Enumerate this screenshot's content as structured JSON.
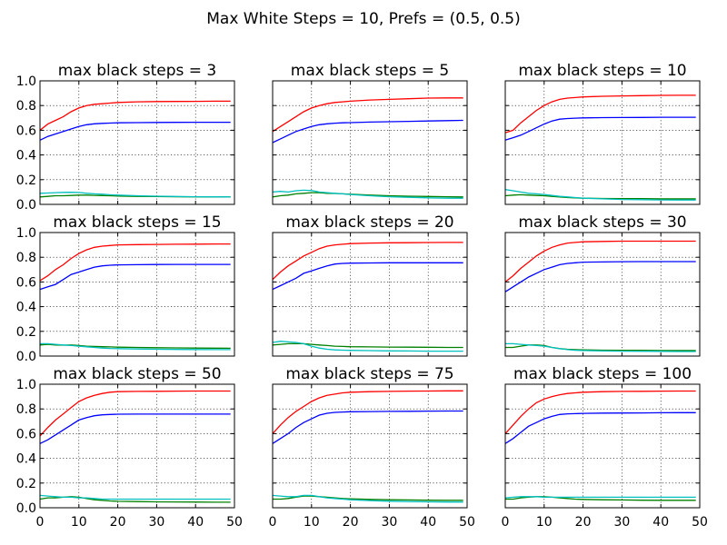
{
  "figure": {
    "suptitle": "Max White Steps = 10, Prefs = (0.5, 0.5)"
  },
  "chart_data": {
    "type": "line",
    "grid": true,
    "xlim": [
      0,
      50
    ],
    "ylim": [
      0.0,
      1.0
    ],
    "xticks": [
      "0",
      "10",
      "20",
      "30",
      "40",
      "50"
    ],
    "yticks": [
      "0.0",
      "0.2",
      "0.4",
      "0.6",
      "0.8",
      "1.0"
    ],
    "series_colors": [
      "#ff0000",
      "#0000ff",
      "#008000",
      "#00bfbf"
    ],
    "x": [
      0,
      2,
      4,
      6,
      8,
      10,
      12,
      14,
      16,
      18,
      20,
      25,
      30,
      35,
      40,
      45,
      49
    ],
    "panels": [
      {
        "title": "max black steps = 3",
        "series": [
          {
            "color": "#ff0000",
            "values": [
              0.6,
              0.65,
              0.68,
              0.71,
              0.75,
              0.78,
              0.8,
              0.81,
              0.815,
              0.82,
              0.825,
              0.83,
              0.832,
              0.833,
              0.834,
              0.835,
              0.835
            ]
          },
          {
            "color": "#0000ff",
            "values": [
              0.52,
              0.55,
              0.57,
              0.59,
              0.61,
              0.63,
              0.645,
              0.652,
              0.656,
              0.658,
              0.66,
              0.662,
              0.663,
              0.664,
              0.665,
              0.665,
              0.665
            ]
          },
          {
            "color": "#008000",
            "values": [
              0.06,
              0.065,
              0.07,
              0.07,
              0.072,
              0.075,
              0.075,
              0.073,
              0.071,
              0.07,
              0.068,
              0.065,
              0.063,
              0.062,
              0.061,
              0.06,
              0.06
            ]
          },
          {
            "color": "#00bfbf",
            "values": [
              0.09,
              0.092,
              0.095,
              0.097,
              0.098,
              0.096,
              0.09,
              0.085,
              0.082,
              0.078,
              0.075,
              0.07,
              0.066,
              0.064,
              0.062,
              0.061,
              0.06
            ]
          }
        ]
      },
      {
        "title": "max black steps = 5",
        "series": [
          {
            "color": "#ff0000",
            "values": [
              0.59,
              0.63,
              0.67,
              0.71,
              0.75,
              0.78,
              0.8,
              0.815,
              0.825,
              0.83,
              0.835,
              0.845,
              0.85,
              0.855,
              0.86,
              0.862,
              0.862
            ]
          },
          {
            "color": "#0000ff",
            "values": [
              0.5,
              0.53,
              0.56,
              0.59,
              0.61,
              0.63,
              0.645,
              0.652,
              0.657,
              0.66,
              0.662,
              0.666,
              0.669,
              0.672,
              0.675,
              0.678,
              0.68
            ]
          },
          {
            "color": "#008000",
            "values": [
              0.06,
              0.07,
              0.075,
              0.085,
              0.09,
              0.095,
              0.095,
              0.09,
              0.088,
              0.085,
              0.082,
              0.075,
              0.07,
              0.066,
              0.064,
              0.062,
              0.06
            ]
          },
          {
            "color": "#00bfbf",
            "values": [
              0.1,
              0.105,
              0.1,
              0.11,
              0.115,
              0.112,
              0.1,
              0.095,
              0.09,
              0.085,
              0.08,
              0.07,
              0.062,
              0.057,
              0.053,
              0.05,
              0.05
            ]
          }
        ]
      },
      {
        "title": "max black steps = 10",
        "series": [
          {
            "color": "#ff0000",
            "values": [
              0.58,
              0.6,
              0.66,
              0.71,
              0.76,
              0.8,
              0.83,
              0.85,
              0.86,
              0.865,
              0.87,
              0.875,
              0.878,
              0.88,
              0.882,
              0.883,
              0.883
            ]
          },
          {
            "color": "#0000ff",
            "values": [
              0.52,
              0.54,
              0.56,
              0.59,
              0.62,
              0.65,
              0.675,
              0.69,
              0.695,
              0.698,
              0.7,
              0.702,
              0.703,
              0.704,
              0.705,
              0.705,
              0.705
            ]
          },
          {
            "color": "#008000",
            "values": [
              0.07,
              0.075,
              0.078,
              0.075,
              0.072,
              0.07,
              0.065,
              0.06,
              0.055,
              0.052,
              0.05,
              0.048,
              0.047,
              0.046,
              0.045,
              0.045,
              0.045
            ]
          },
          {
            "color": "#00bfbf",
            "values": [
              0.12,
              0.11,
              0.1,
              0.09,
              0.085,
              0.08,
              0.072,
              0.065,
              0.06,
              0.055,
              0.05,
              0.045,
              0.04,
              0.038,
              0.036,
              0.035,
              0.035
            ]
          }
        ]
      },
      {
        "title": "max black steps = 15",
        "series": [
          {
            "color": "#ff0000",
            "values": [
              0.61,
              0.65,
              0.7,
              0.74,
              0.79,
              0.83,
              0.86,
              0.88,
              0.89,
              0.895,
              0.9,
              0.902,
              0.904,
              0.905,
              0.906,
              0.907,
              0.907
            ]
          },
          {
            "color": "#0000ff",
            "values": [
              0.54,
              0.56,
              0.58,
              0.62,
              0.66,
              0.68,
              0.7,
              0.72,
              0.73,
              0.735,
              0.738,
              0.74,
              0.741,
              0.742,
              0.742,
              0.742,
              0.742
            ]
          },
          {
            "color": "#008000",
            "values": [
              0.09,
              0.095,
              0.09,
              0.088,
              0.09,
              0.085,
              0.08,
              0.078,
              0.076,
              0.074,
              0.072,
              0.07,
              0.068,
              0.066,
              0.065,
              0.064,
              0.063
            ]
          },
          {
            "color": "#00bfbf",
            "values": [
              0.1,
              0.1,
              0.095,
              0.09,
              0.085,
              0.08,
              0.075,
              0.07,
              0.065,
              0.062,
              0.06,
              0.057,
              0.055,
              0.054,
              0.053,
              0.052,
              0.052
            ]
          }
        ]
      },
      {
        "title": "max black steps = 20",
        "series": [
          {
            "color": "#ff0000",
            "values": [
              0.62,
              0.68,
              0.73,
              0.77,
              0.81,
              0.84,
              0.87,
              0.89,
              0.9,
              0.905,
              0.91,
              0.915,
              0.917,
              0.918,
              0.919,
              0.92,
              0.92
            ]
          },
          {
            "color": "#0000ff",
            "values": [
              0.54,
              0.57,
              0.6,
              0.63,
              0.67,
              0.69,
              0.71,
              0.73,
              0.745,
              0.75,
              0.752,
              0.754,
              0.755,
              0.755,
              0.755,
              0.755,
              0.755
            ]
          },
          {
            "color": "#008000",
            "values": [
              0.09,
              0.095,
              0.1,
              0.1,
              0.1,
              0.095,
              0.09,
              0.085,
              0.08,
              0.078,
              0.076,
              0.074,
              0.073,
              0.072,
              0.071,
              0.07,
              0.07
            ]
          },
          {
            "color": "#00bfbf",
            "values": [
              0.11,
              0.12,
              0.115,
              0.11,
              0.1,
              0.08,
              0.065,
              0.055,
              0.05,
              0.048,
              0.046,
              0.044,
              0.042,
              0.041,
              0.04,
              0.04,
              0.04
            ]
          }
        ]
      },
      {
        "title": "max black steps = 30",
        "series": [
          {
            "color": "#ff0000",
            "values": [
              0.6,
              0.65,
              0.71,
              0.76,
              0.81,
              0.85,
              0.88,
              0.9,
              0.915,
              0.92,
              0.925,
              0.928,
              0.93,
              0.93,
              0.93,
              0.93,
              0.93
            ]
          },
          {
            "color": "#0000ff",
            "values": [
              0.52,
              0.56,
              0.6,
              0.64,
              0.67,
              0.7,
              0.72,
              0.74,
              0.75,
              0.755,
              0.76,
              0.762,
              0.764,
              0.765,
              0.765,
              0.765,
              0.765
            ]
          },
          {
            "color": "#008000",
            "values": [
              0.07,
              0.07,
              0.08,
              0.09,
              0.09,
              0.085,
              0.07,
              0.06,
              0.055,
              0.052,
              0.05,
              0.048,
              0.047,
              0.046,
              0.045,
              0.045,
              0.045
            ]
          },
          {
            "color": "#00bfbf",
            "values": [
              0.1,
              0.1,
              0.095,
              0.09,
              0.085,
              0.08,
              0.07,
              0.06,
              0.052,
              0.047,
              0.045,
              0.042,
              0.04,
              0.039,
              0.038,
              0.037,
              0.037
            ]
          }
        ]
      },
      {
        "title": "max black steps = 50",
        "series": [
          {
            "color": "#ff0000",
            "values": [
              0.58,
              0.65,
              0.71,
              0.76,
              0.81,
              0.86,
              0.89,
              0.91,
              0.925,
              0.935,
              0.94,
              0.942,
              0.943,
              0.944,
              0.945,
              0.945,
              0.945
            ]
          },
          {
            "color": "#0000ff",
            "values": [
              0.52,
              0.55,
              0.59,
              0.63,
              0.67,
              0.71,
              0.73,
              0.745,
              0.752,
              0.755,
              0.757,
              0.758,
              0.758,
              0.758,
              0.758,
              0.758,
              0.758
            ]
          },
          {
            "color": "#008000",
            "values": [
              0.07,
              0.08,
              0.08,
              0.085,
              0.09,
              0.085,
              0.075,
              0.065,
              0.06,
              0.055,
              0.052,
              0.05,
              0.048,
              0.047,
              0.046,
              0.045,
              0.045
            ]
          },
          {
            "color": "#00bfbf",
            "values": [
              0.1,
              0.095,
              0.09,
              0.085,
              0.085,
              0.08,
              0.08,
              0.075,
              0.07,
              0.07,
              0.07,
              0.07,
              0.07,
              0.07,
              0.07,
              0.07,
              0.07
            ]
          }
        ]
      },
      {
        "title": "max black steps = 75",
        "series": [
          {
            "color": "#ff0000",
            "values": [
              0.6,
              0.67,
              0.73,
              0.78,
              0.82,
              0.86,
              0.89,
              0.91,
              0.92,
              0.93,
              0.935,
              0.94,
              0.942,
              0.944,
              0.945,
              0.946,
              0.946
            ]
          },
          {
            "color": "#0000ff",
            "values": [
              0.52,
              0.56,
              0.6,
              0.65,
              0.69,
              0.72,
              0.75,
              0.765,
              0.772,
              0.775,
              0.777,
              0.779,
              0.78,
              0.781,
              0.782,
              0.783,
              0.783
            ]
          },
          {
            "color": "#008000",
            "values": [
              0.07,
              0.07,
              0.075,
              0.085,
              0.095,
              0.095,
              0.09,
              0.085,
              0.08,
              0.075,
              0.072,
              0.068,
              0.065,
              0.063,
              0.061,
              0.06,
              0.06
            ]
          },
          {
            "color": "#00bfbf",
            "values": [
              0.1,
              0.095,
              0.09,
              0.09,
              0.1,
              0.1,
              0.09,
              0.08,
              0.075,
              0.07,
              0.065,
              0.058,
              0.053,
              0.05,
              0.048,
              0.046,
              0.046
            ]
          }
        ]
      },
      {
        "title": "max black steps = 100",
        "series": [
          {
            "color": "#ff0000",
            "values": [
              0.6,
              0.67,
              0.74,
              0.8,
              0.85,
              0.88,
              0.9,
              0.915,
              0.925,
              0.93,
              0.935,
              0.94,
              0.942,
              0.943,
              0.944,
              0.945,
              0.945
            ]
          },
          {
            "color": "#0000ff",
            "values": [
              0.52,
              0.56,
              0.61,
              0.66,
              0.69,
              0.72,
              0.74,
              0.755,
              0.76,
              0.762,
              0.764,
              0.766,
              0.767,
              0.768,
              0.769,
              0.77,
              0.77
            ]
          },
          {
            "color": "#008000",
            "values": [
              0.07,
              0.07,
              0.08,
              0.085,
              0.09,
              0.09,
              0.085,
              0.08,
              0.075,
              0.07,
              0.068,
              0.065,
              0.063,
              0.061,
              0.06,
              0.06,
              0.06
            ]
          },
          {
            "color": "#00bfbf",
            "values": [
              0.08,
              0.085,
              0.09,
              0.09,
              0.09,
              0.085,
              0.085,
              0.085,
              0.085,
              0.085,
              0.085,
              0.085,
              0.085,
              0.085,
              0.085,
              0.085,
              0.085
            ]
          }
        ]
      }
    ]
  }
}
